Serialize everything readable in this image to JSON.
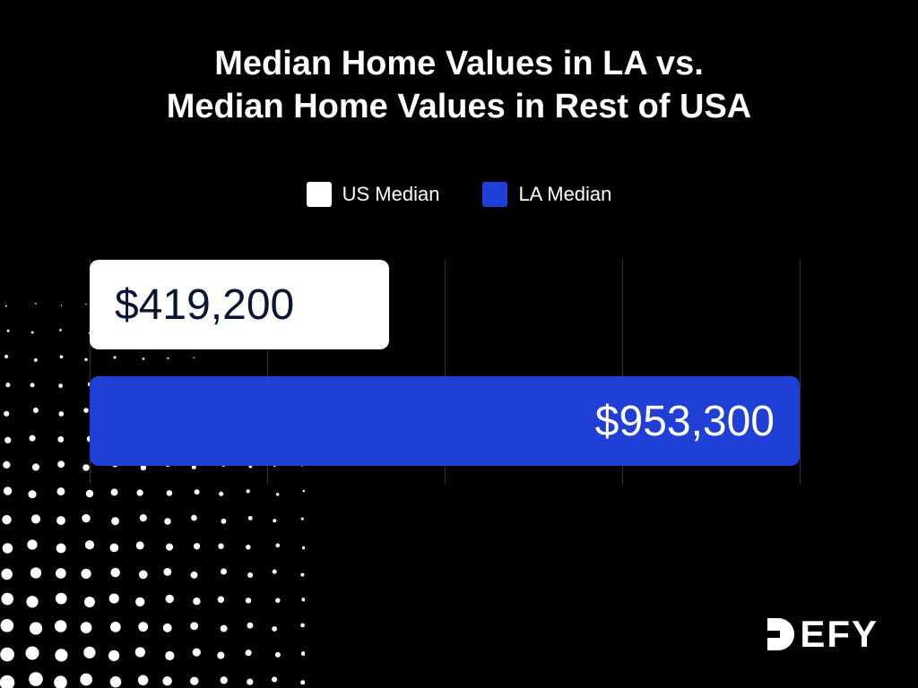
{
  "title_line1": "Median Home Values in LA vs.",
  "title_line2": "Median Home Values in Rest of USA",
  "title_fontsize": 38,
  "legend": [
    {
      "label": "US Median",
      "color": "#ffffff"
    },
    {
      "label": "LA Median",
      "color": "#1f3fd6"
    }
  ],
  "chart": {
    "type": "bar-horizontal",
    "background": "#000000",
    "grid_color": "#333333",
    "xmax": 1000000,
    "grid_positions_pct": [
      0,
      22.5,
      45,
      67.5,
      90
    ],
    "bars": [
      {
        "name": "us-median",
        "value": 419200,
        "label": "$419,200",
        "color": "#ffffff",
        "text_color": "#0a1433",
        "width_pct": 38,
        "label_align": "left"
      },
      {
        "name": "la-median",
        "value": 953300,
        "label": "$953,300",
        "color": "#1f3fd6",
        "text_color": "#ffffff",
        "width_pct": 90,
        "label_align": "right"
      }
    ]
  },
  "brand": "DEFY"
}
